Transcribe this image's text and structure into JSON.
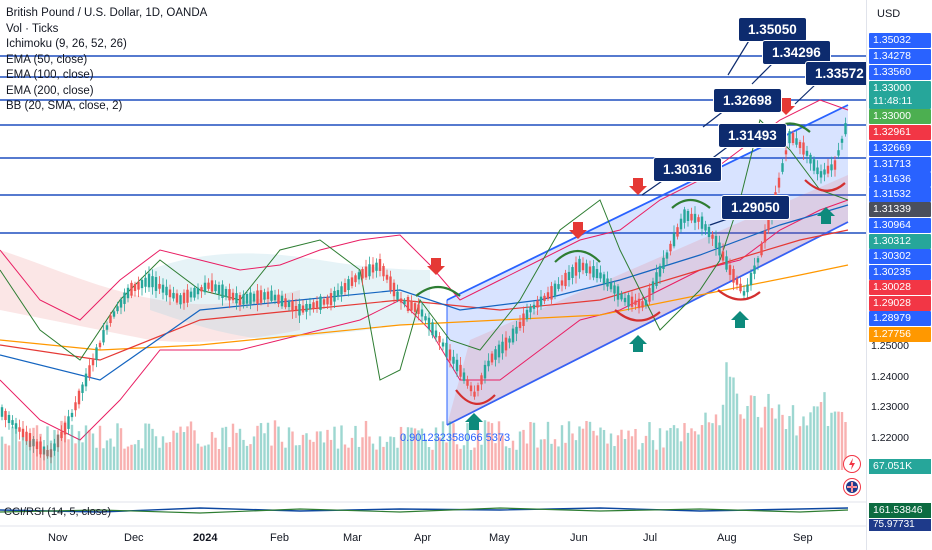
{
  "chart_data": {
    "type": "candlestick",
    "symbol_title": "British Pound / U.S. Dollar, 1D, OANDA",
    "currency": "USD",
    "indicators": [
      "Vol · Ticks",
      "Ichimoku (9, 26, 52, 26)",
      "EMA (50, close)",
      "EMA (100, close)",
      "EMA (200, close)",
      "BB (20, SMA, close, 2)"
    ],
    "x_axis_labels": [
      "Nov",
      "Dec",
      "2024",
      "Feb",
      "Mar",
      "Apr",
      "May",
      "Jun",
      "Jul",
      "Aug",
      "Sep"
    ],
    "y_axis_labels": [
      "1.25000",
      "1.24000",
      "1.23000",
      "1.22000"
    ],
    "price_tags": [
      {
        "value": "1.35032",
        "color": "#2962ff"
      },
      {
        "value": "1.34278",
        "color": "#2962ff"
      },
      {
        "value": "1.33560",
        "color": "#2962ff"
      },
      {
        "value": "1.33000",
        "color": "#26a69a"
      },
      {
        "value": "11:48:11",
        "color": "#26a69a"
      },
      {
        "value": "1.33000",
        "color": "#4caf50"
      },
      {
        "value": "1.32961",
        "color": "#f23645"
      },
      {
        "value": "1.32669",
        "color": "#2962ff"
      },
      {
        "value": "1.31713",
        "color": "#2962ff"
      },
      {
        "value": "1.31636",
        "color": "#2962ff"
      },
      {
        "value": "1.31532",
        "color": "#2962ff"
      },
      {
        "value": "1.31339",
        "color": "#4a4f5c"
      },
      {
        "value": "1.30964",
        "color": "#2962ff"
      },
      {
        "value": "1.30312",
        "color": "#26a69a"
      },
      {
        "value": "1.30302",
        "color": "#2962ff"
      },
      {
        "value": "1.30235",
        "color": "#2962ff"
      },
      {
        "value": "1.30028",
        "color": "#f23645"
      },
      {
        "value": "1.29028",
        "color": "#f23645"
      },
      {
        "value": "1.28979",
        "color": "#2962ff"
      },
      {
        "value": "1.27756",
        "color": "#ff9800"
      }
    ],
    "callouts": [
      "1.35050",
      "1.34296",
      "1.33572",
      "1.32698",
      "1.31493",
      "1.30316",
      "1.29050"
    ],
    "fib_label": "0.901232358066 5373",
    "volume_value": "67.051K",
    "cci_label": "CCI/RSI (14, 5, close)",
    "cci_value": "161.53846",
    "cci_value2": "75.97731"
  }
}
